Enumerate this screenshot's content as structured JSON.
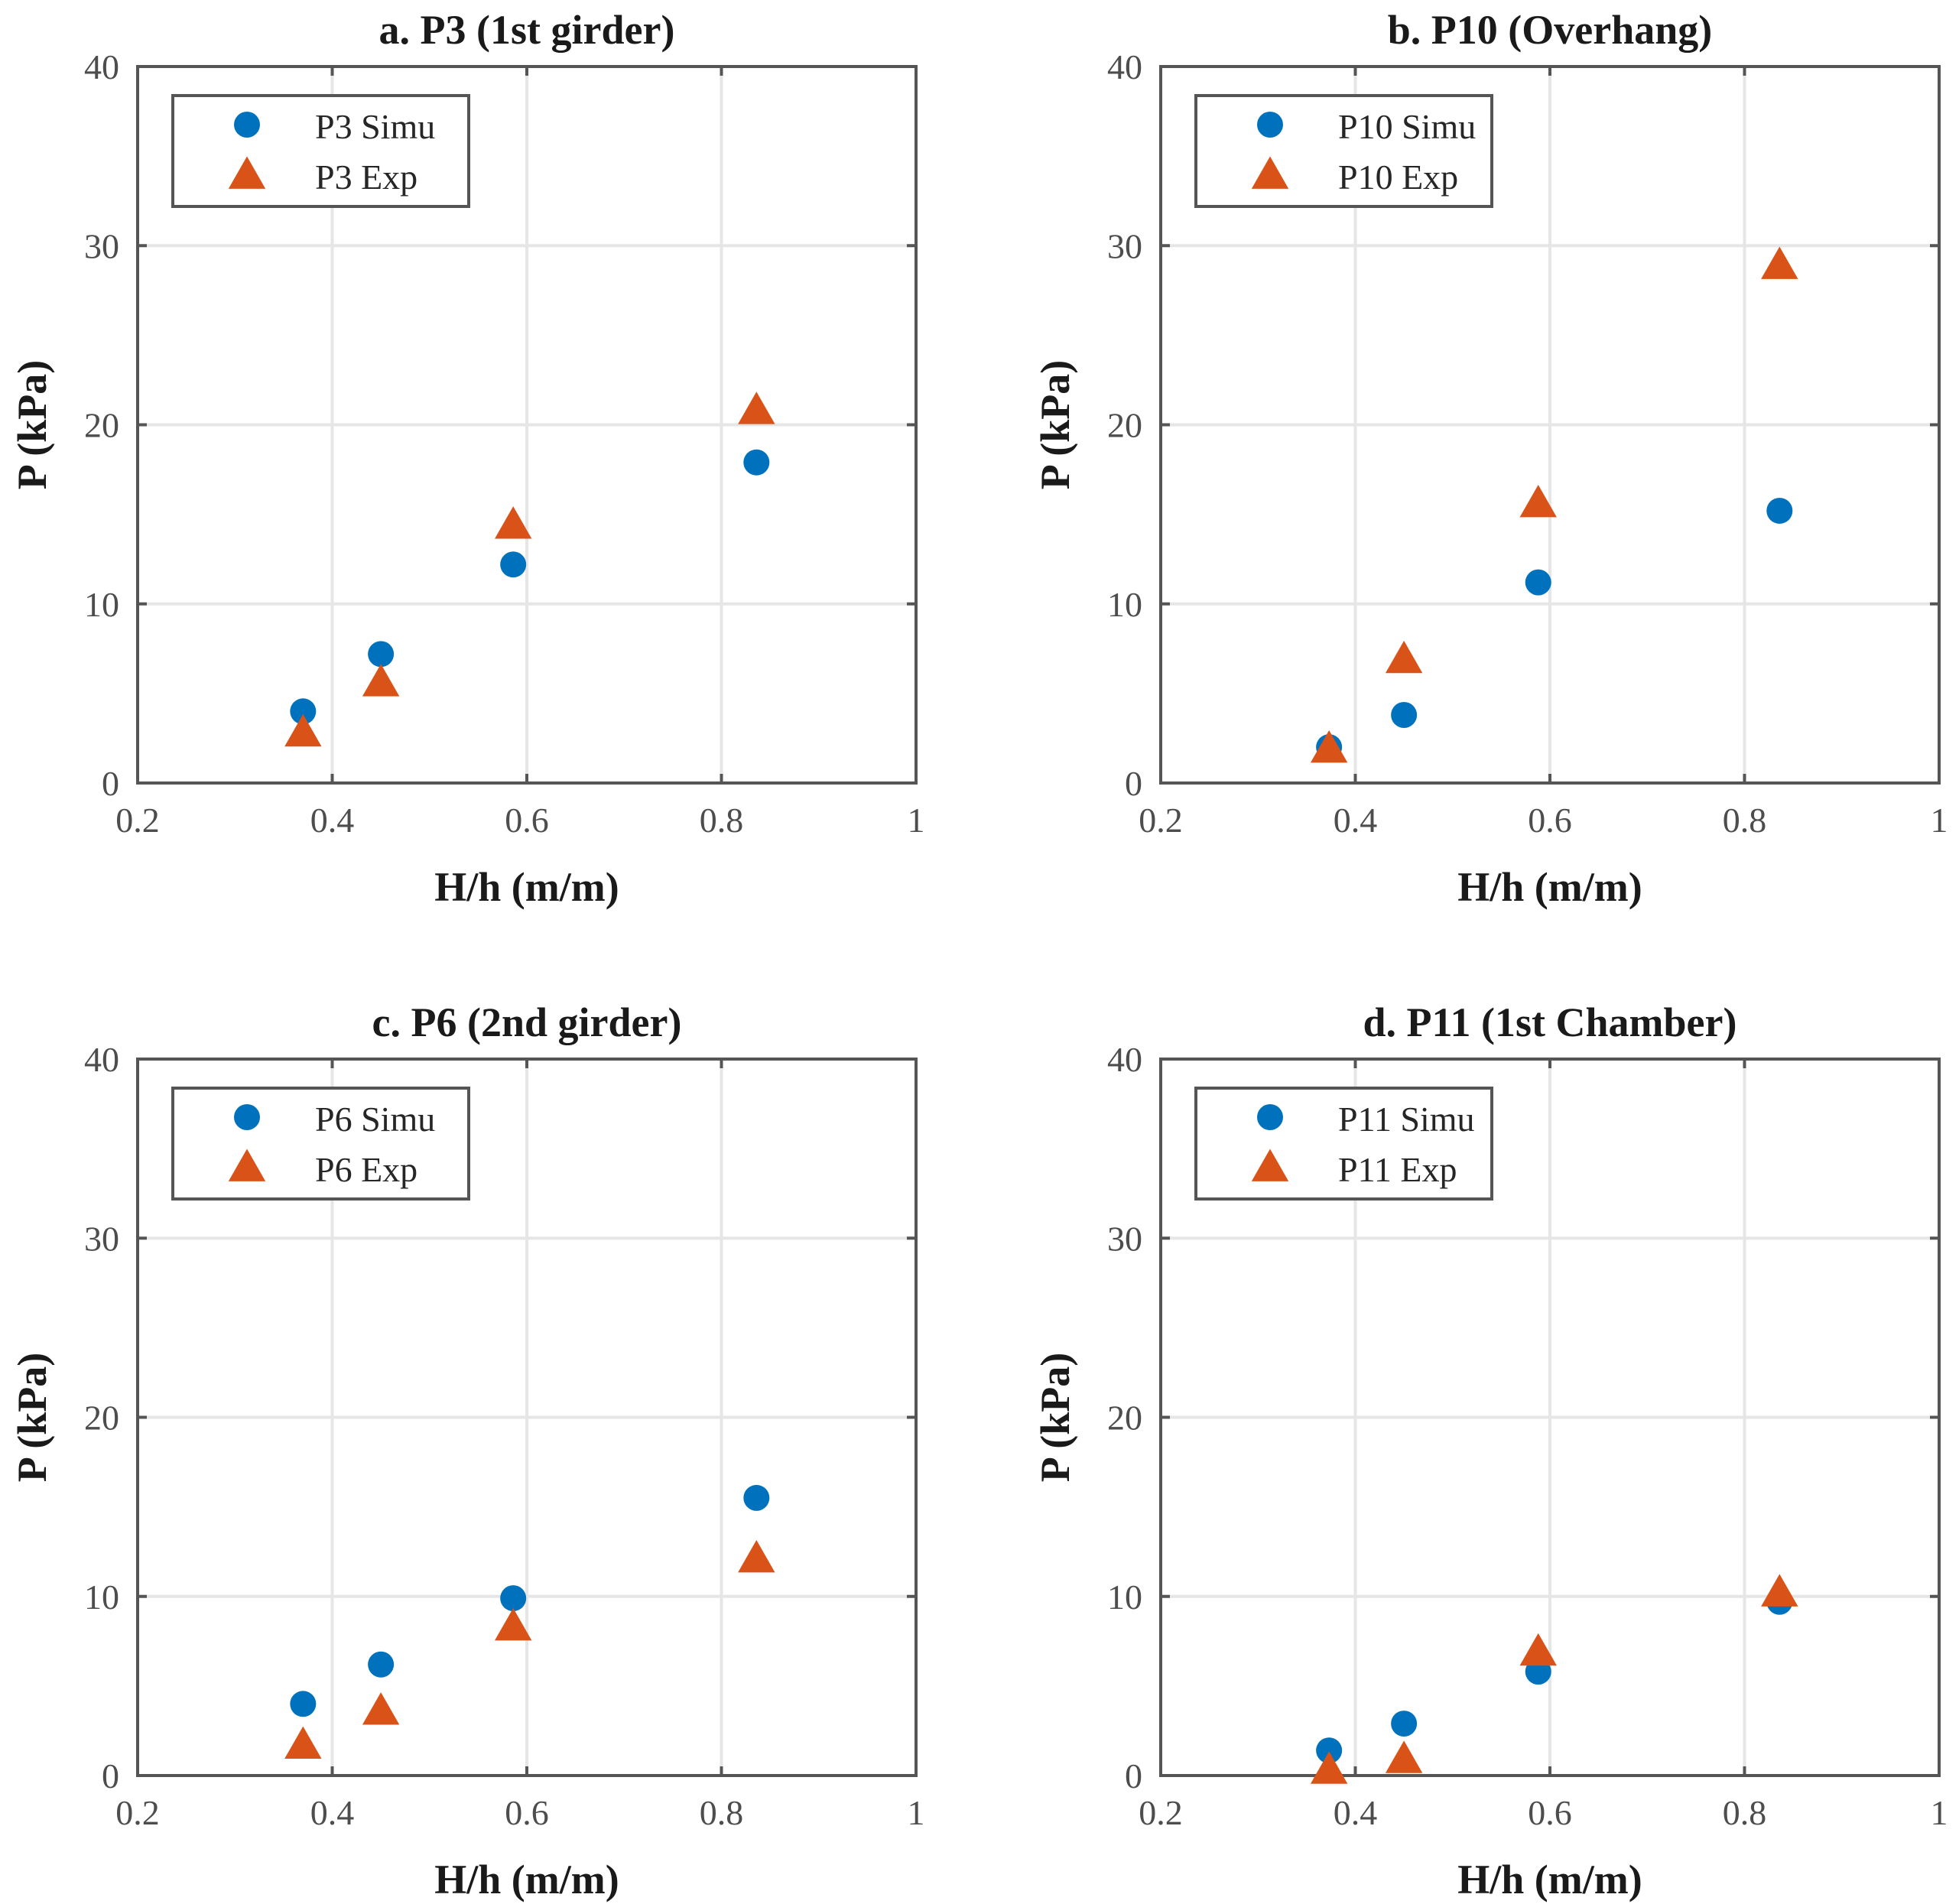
{
  "colors": {
    "simu": "#0072BD",
    "exp": "#D95319",
    "axis": "#555555",
    "grid": "#e6e6e6"
  },
  "chart_data": [
    {
      "type": "scatter",
      "title": "a. P3 (1st girder)",
      "xlabel": "H/h (m/m)",
      "ylabel": "P (kPa)",
      "xlim": [
        0.2,
        1
      ],
      "ylim": [
        0,
        40
      ],
      "xticks": [
        0.2,
        0.4,
        0.6,
        0.8,
        1
      ],
      "xtick_labels": [
        "0.2",
        "0.4",
        "0.6",
        "0.8",
        "1"
      ],
      "yticks": [
        0,
        10,
        20,
        30,
        40
      ],
      "ytick_labels": [
        "0",
        "10",
        "20",
        "30",
        "40"
      ],
      "grid": true,
      "legend_position": "top-left",
      "series": [
        {
          "name": "P3 Simu",
          "marker": "circle",
          "color": "#0072BD",
          "x": [
            0.37,
            0.45,
            0.586,
            0.836
          ],
          "y": [
            4.0,
            7.2,
            12.2,
            17.9
          ]
        },
        {
          "name": "P3 Exp",
          "marker": "triangle",
          "color": "#D95319",
          "x": [
            0.37,
            0.45,
            0.586,
            0.836
          ],
          "y": [
            2.8,
            5.6,
            14.4,
            20.8
          ]
        }
      ]
    },
    {
      "type": "scatter",
      "title": "b. P10 (Overhang)",
      "xlabel": "H/h (m/m)",
      "ylabel": "P (kPa)",
      "xlim": [
        0.2,
        1
      ],
      "ylim": [
        0,
        40
      ],
      "xticks": [
        0.2,
        0.4,
        0.6,
        0.8,
        1
      ],
      "xtick_labels": [
        "0.2",
        "0.4",
        "0.6",
        "0.8",
        "1"
      ],
      "yticks": [
        0,
        10,
        20,
        30,
        40
      ],
      "ytick_labels": [
        "0",
        "10",
        "20",
        "30",
        "40"
      ],
      "grid": true,
      "legend_position": "top-left",
      "series": [
        {
          "name": "P10 Simu",
          "marker": "circle",
          "color": "#0072BD",
          "x": [
            0.373,
            0.45,
            0.588,
            0.836
          ],
          "y": [
            2.0,
            3.8,
            11.2,
            15.2
          ]
        },
        {
          "name": "P10 Exp",
          "marker": "triangle",
          "color": "#D95319",
          "x": [
            0.373,
            0.45,
            0.588,
            0.836
          ],
          "y": [
            1.9,
            6.9,
            15.6,
            28.9
          ]
        }
      ]
    },
    {
      "type": "scatter",
      "title": "c. P6 (2nd girder)",
      "xlabel": "H/h (m/m)",
      "ylabel": "P (kPa)",
      "xlim": [
        0.2,
        1
      ],
      "ylim": [
        0,
        40
      ],
      "xticks": [
        0.2,
        0.4,
        0.6,
        0.8,
        1
      ],
      "xtick_labels": [
        "0.2",
        "0.4",
        "0.6",
        "0.8",
        "1"
      ],
      "yticks": [
        0,
        10,
        20,
        30,
        40
      ],
      "ytick_labels": [
        "0",
        "10",
        "20",
        "30",
        "40"
      ],
      "grid": true,
      "legend_position": "top-left",
      "series": [
        {
          "name": "P6 Simu",
          "marker": "circle",
          "color": "#0072BD",
          "x": [
            0.37,
            0.45,
            0.586,
            0.836
          ],
          "y": [
            4.0,
            6.2,
            9.9,
            15.5
          ]
        },
        {
          "name": "P6 Exp",
          "marker": "triangle",
          "color": "#D95319",
          "x": [
            0.37,
            0.45,
            0.586,
            0.836
          ],
          "y": [
            1.7,
            3.6,
            8.3,
            12.1
          ]
        }
      ]
    },
    {
      "type": "scatter",
      "title": "d. P11 (1st Chamber)",
      "xlabel": "H/h (m/m)",
      "ylabel": "P (kPa)",
      "xlim": [
        0.2,
        1
      ],
      "ylim": [
        0,
        40
      ],
      "xticks": [
        0.2,
        0.4,
        0.6,
        0.8,
        1
      ],
      "xtick_labels": [
        "0.2",
        "0.4",
        "0.6",
        "0.8",
        "1"
      ],
      "yticks": [
        0,
        10,
        20,
        30,
        40
      ],
      "ytick_labels": [
        "0",
        "10",
        "20",
        "30",
        "40"
      ],
      "grid": true,
      "legend_position": "top-left",
      "series": [
        {
          "name": "P11 Simu",
          "marker": "circle",
          "color": "#0072BD",
          "x": [
            0.373,
            0.45,
            0.588,
            0.836
          ],
          "y": [
            1.4,
            2.9,
            5.8,
            9.7
          ]
        },
        {
          "name": "P11 Exp",
          "marker": "triangle",
          "color": "#D95319",
          "x": [
            0.373,
            0.45,
            0.588,
            0.836
          ],
          "y": [
            0.3,
            0.9,
            6.9,
            10.2
          ]
        }
      ]
    }
  ]
}
